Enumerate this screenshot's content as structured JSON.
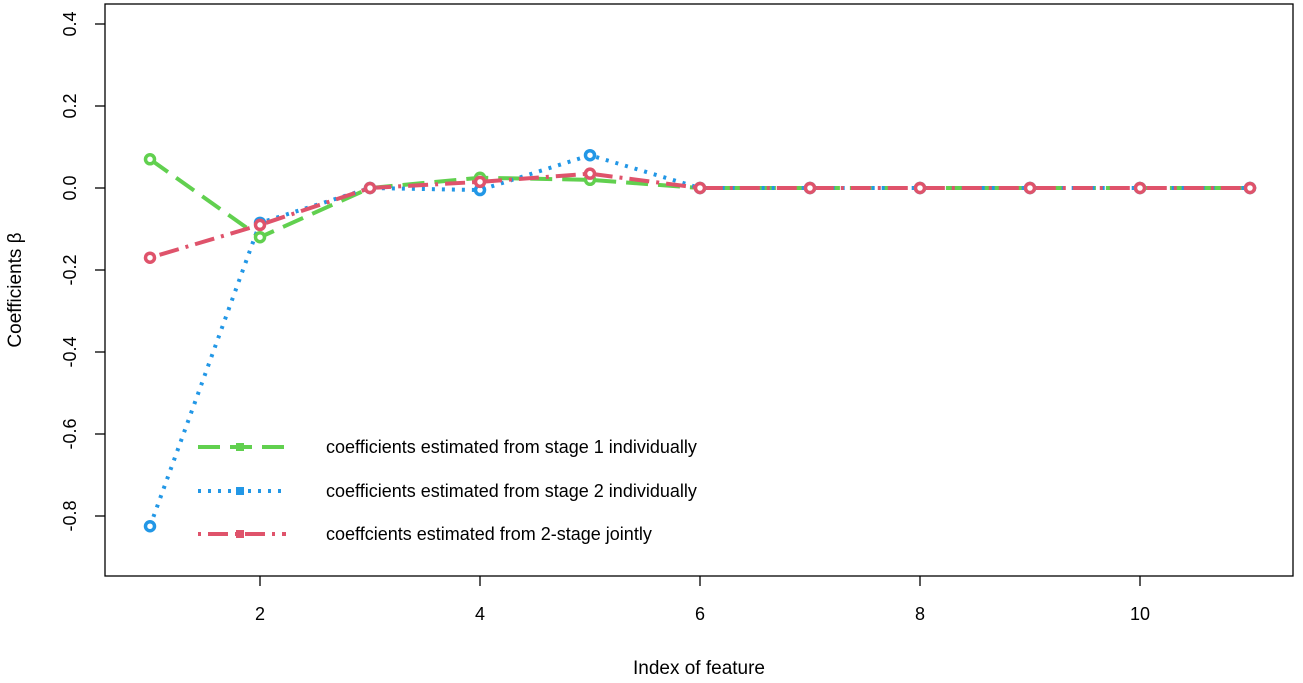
{
  "chart_data": {
    "type": "line",
    "title": "",
    "xlabel": "Index of feature",
    "ylabel": "Coefficients β",
    "xlim": [
      0.5,
      11.5
    ],
    "ylim": [
      -0.95,
      0.42
    ],
    "xticks": [
      2,
      4,
      6,
      8,
      10
    ],
    "xtick_labels": [
      "2",
      "4",
      "6",
      "8",
      "10"
    ],
    "yticks": [
      -0.8,
      -0.6,
      -0.4,
      -0.2,
      0.0,
      0.2,
      0.4
    ],
    "ytick_labels": [
      "-0.8",
      "-0.6",
      "-0.4",
      "-0.2",
      "0.0",
      "0.2",
      "0.4"
    ],
    "x": [
      1,
      2,
      3,
      4,
      5,
      6,
      7,
      8,
      9,
      10,
      11
    ],
    "legend_position": "bottom-left",
    "series": [
      {
        "name": "coefficients estimated from stage 1 individually",
        "color": "#61D04F",
        "dash": "long-dash",
        "values": [
          0.07,
          -0.12,
          0.0,
          0.025,
          0.02,
          0.0,
          0.0,
          0.0,
          0.0,
          0.0,
          0.0
        ]
      },
      {
        "name": "coefficients estimated from stage 2 individually",
        "color": "#2297E6",
        "dash": "dotted",
        "values": [
          -0.825,
          -0.085,
          0.0,
          -0.005,
          0.08,
          0.0,
          0.0,
          0.0,
          0.0,
          0.0,
          0.0
        ]
      },
      {
        "name": "coeffcients estimated from 2-stage jointly",
        "color": "#DF536B",
        "dash": "dot-dash",
        "values": [
          -0.17,
          -0.09,
          0.0,
          0.015,
          0.035,
          0.0,
          0.0,
          0.0,
          0.0,
          0.0,
          0.0
        ]
      }
    ]
  }
}
